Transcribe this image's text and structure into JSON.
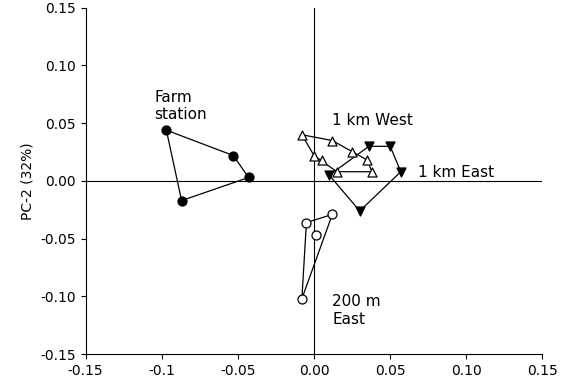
{
  "chart_data": {
    "type": "scatter",
    "y_label": "PC-2 (32%)",
    "series": [
      {
        "name": "Farm\nstation",
        "color": "#000000",
        "marker": "filled_circle",
        "x": [
          -0.097,
          -0.053,
          -0.043,
          -0.087
        ],
        "y": [
          0.044,
          0.022,
          0.003,
          -0.017
        ]
      },
      {
        "name": "1 km West",
        "color": "#000000",
        "marker": "open_triangle_up",
        "x": [
          -0.008,
          0.0,
          0.012,
          0.025,
          0.035,
          0.005,
          0.015,
          0.038
        ],
        "y": [
          0.04,
          0.022,
          0.035,
          0.025,
          0.018,
          0.018,
          0.008,
          0.008
        ]
      },
      {
        "name": "1 km East",
        "color": "#000000",
        "marker": "filled_triangle_down",
        "x": [
          0.036,
          0.05,
          0.057,
          0.03,
          0.01
        ],
        "y": [
          0.03,
          0.03,
          0.008,
          -0.026,
          0.005
        ]
      },
      {
        "name": "200 m\nEast",
        "color": "#000000",
        "marker": "open_circle",
        "x": [
          -0.008,
          -0.005,
          0.001,
          0.012
        ],
        "y": [
          -0.102,
          -0.036,
          -0.047,
          -0.029
        ]
      }
    ],
    "xlim": [
      -0.15,
      0.15
    ],
    "xticks": [
      -0.15,
      -0.1,
      -0.05,
      {
        "value": 0,
        "label": "0.00"
      },
      0.05,
      {
        "value": 0.1,
        "label": "0.10"
      },
      0.15
    ],
    "ylim": [
      -0.15,
      0.15
    ],
    "yticks": [
      -0.15,
      {
        "value": -0.1,
        "label": "-0.10"
      },
      -0.05,
      {
        "value": 0,
        "label": "0.00"
      },
      0.05,
      {
        "value": 0.1,
        "label": "0.10"
      },
      0.15
    ],
    "grid": false
  }
}
